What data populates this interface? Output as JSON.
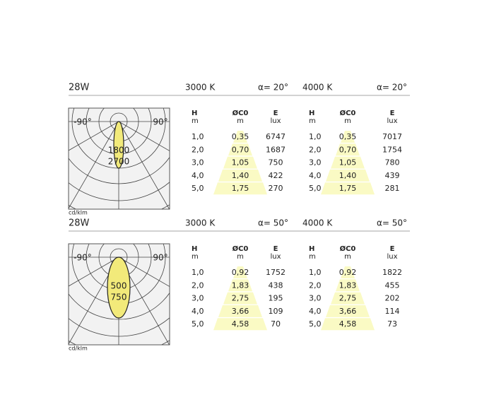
{
  "sections": [
    {
      "power": "28W",
      "polar": {
        "left_label": "-90°",
        "right_label": "90°",
        "labels": [
          "1800",
          "2700"
        ],
        "unit": "cd/klm"
      },
      "tables": [
        {
          "cct": "3000 K",
          "angle": "α= 20°",
          "headers": [
            {
              "name": "H",
              "unit": "m"
            },
            {
              "name": "ØC0",
              "unit": "m"
            },
            {
              "name": "E",
              "unit": "lux"
            }
          ],
          "rows": [
            [
              "1,0",
              "0,35",
              "6747"
            ],
            [
              "2,0",
              "0,70",
              "1687"
            ],
            [
              "3,0",
              "1,05",
              "750"
            ],
            [
              "4,0",
              "1,40",
              "422"
            ],
            [
              "5,0",
              "1,75",
              "270"
            ]
          ]
        },
        {
          "cct": "4000 K",
          "angle": "α= 20°",
          "headers": [
            {
              "name": "H",
              "unit": "m"
            },
            {
              "name": "ØC0",
              "unit": "m"
            },
            {
              "name": "E",
              "unit": "lux"
            }
          ],
          "rows": [
            [
              "1,0",
              "0,35",
              "7017"
            ],
            [
              "2,0",
              "0,70",
              "1754"
            ],
            [
              "3,0",
              "1,05",
              "780"
            ],
            [
              "4,0",
              "1,40",
              "439"
            ],
            [
              "5,0",
              "1,75",
              "281"
            ]
          ]
        }
      ]
    },
    {
      "power": "28W",
      "polar": {
        "left_label": "-90°",
        "right_label": "90°",
        "labels": [
          "500",
          "750"
        ],
        "unit": "cd/klm"
      },
      "tables": [
        {
          "cct": "3000 K",
          "angle": "α= 50°",
          "headers": [
            {
              "name": "H",
              "unit": "m"
            },
            {
              "name": "ØC0",
              "unit": "m"
            },
            {
              "name": "E",
              "unit": "lux"
            }
          ],
          "rows": [
            [
              "1,0",
              "0,92",
              "1752"
            ],
            [
              "2,0",
              "1,83",
              "438"
            ],
            [
              "3,0",
              "2,75",
              "195"
            ],
            [
              "4,0",
              "3,66",
              "109"
            ],
            [
              "5,0",
              "4,58",
              "70"
            ]
          ]
        },
        {
          "cct": "4000 K",
          "angle": "α= 50°",
          "headers": [
            {
              "name": "H",
              "unit": "m"
            },
            {
              "name": "ØC0",
              "unit": "m"
            },
            {
              "name": "E",
              "unit": "lux"
            }
          ],
          "rows": [
            [
              "1,0",
              "0,92",
              "1822"
            ],
            [
              "2,0",
              "1,83",
              "455"
            ],
            [
              "3,0",
              "2,75",
              "202"
            ],
            [
              "4,0",
              "3,66",
              "114"
            ],
            [
              "5,0",
              "4,58",
              "73"
            ]
          ]
        }
      ]
    }
  ]
}
